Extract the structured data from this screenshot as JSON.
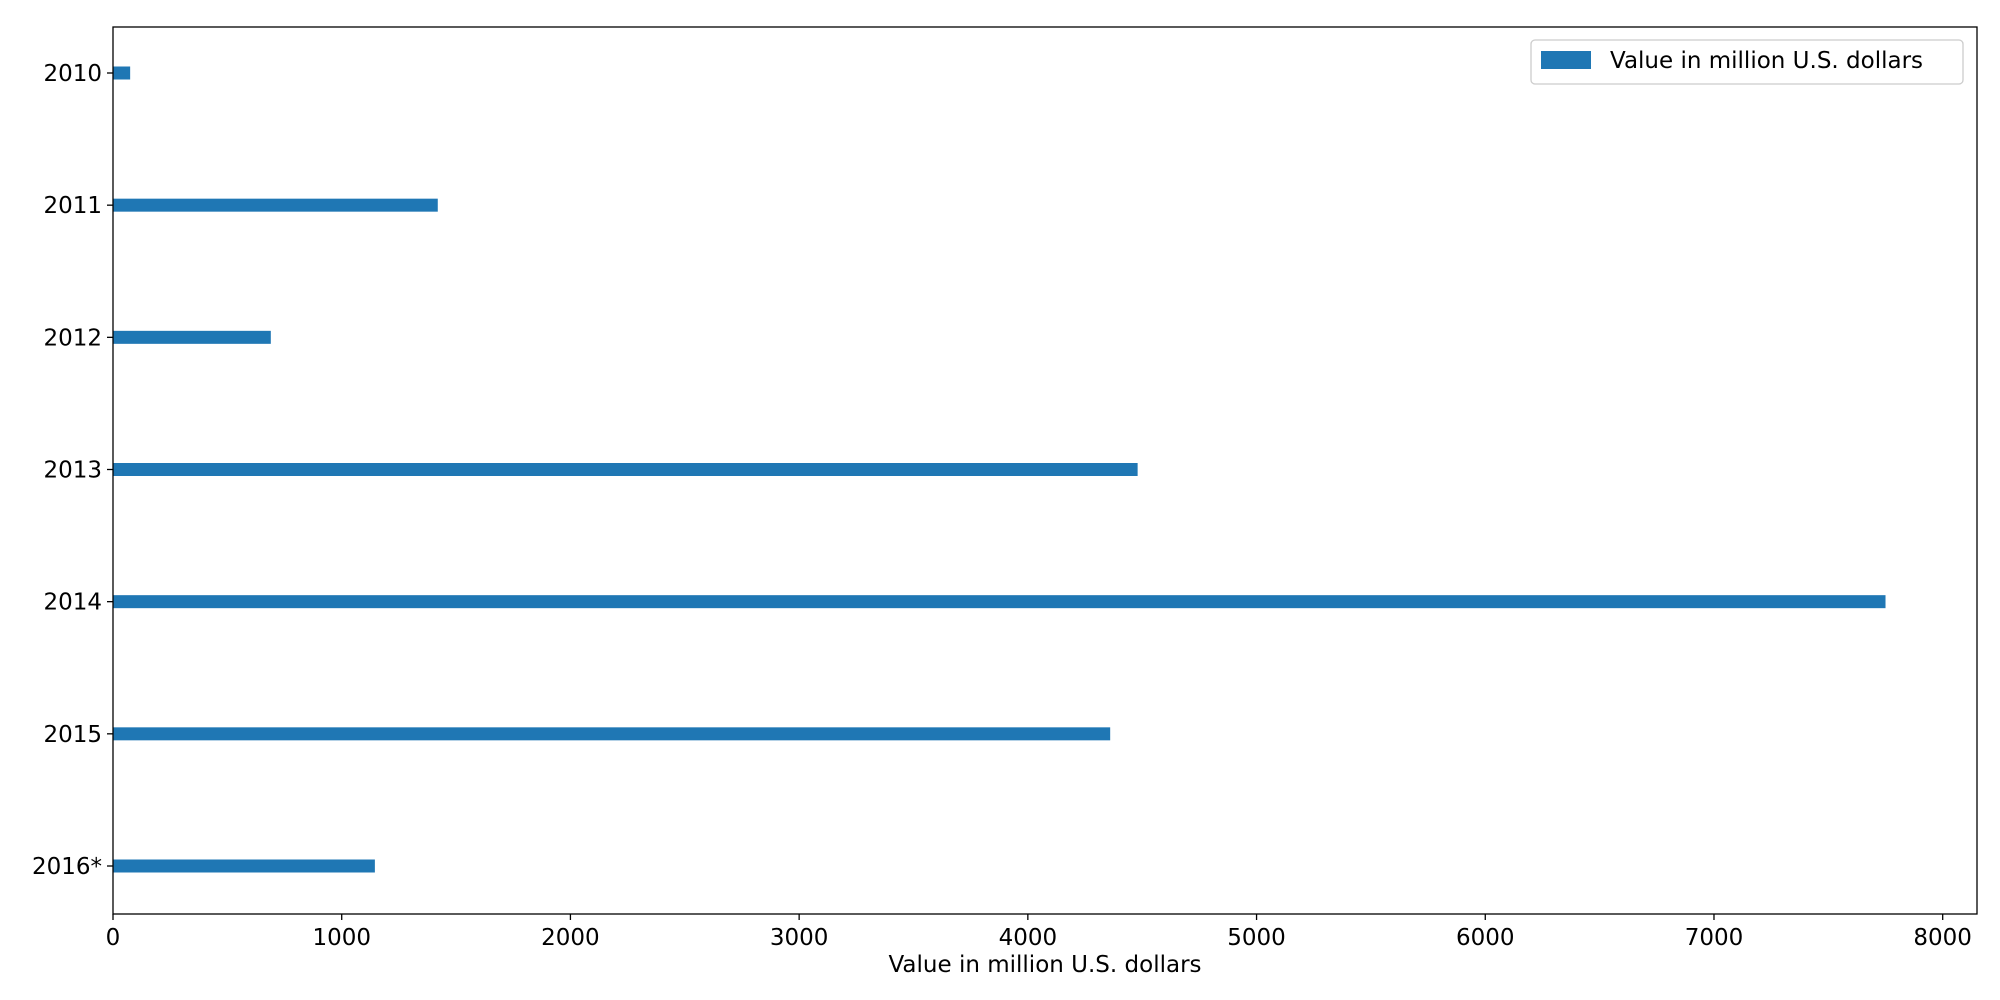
{
  "chart_data": {
    "type": "bar",
    "orientation": "horizontal",
    "categories": [
      "2010",
      "2011",
      "2012",
      "2013",
      "2014",
      "2015",
      "2016*"
    ],
    "series": [
      {
        "name": "Value in million U.S. dollars",
        "values": [
          75,
          1420,
          690,
          4480,
          7750,
          4360,
          1145
        ],
        "color": "#1f77b4"
      }
    ],
    "xlabel": "Value in million U.S. dollars",
    "ylabel": "",
    "title": "",
    "xlim": [
      0,
      8150
    ],
    "xticks": [
      0,
      1000,
      2000,
      3000,
      4000,
      5000,
      6000,
      7000,
      8000
    ],
    "grid": false,
    "legend_position": "top-right"
  }
}
